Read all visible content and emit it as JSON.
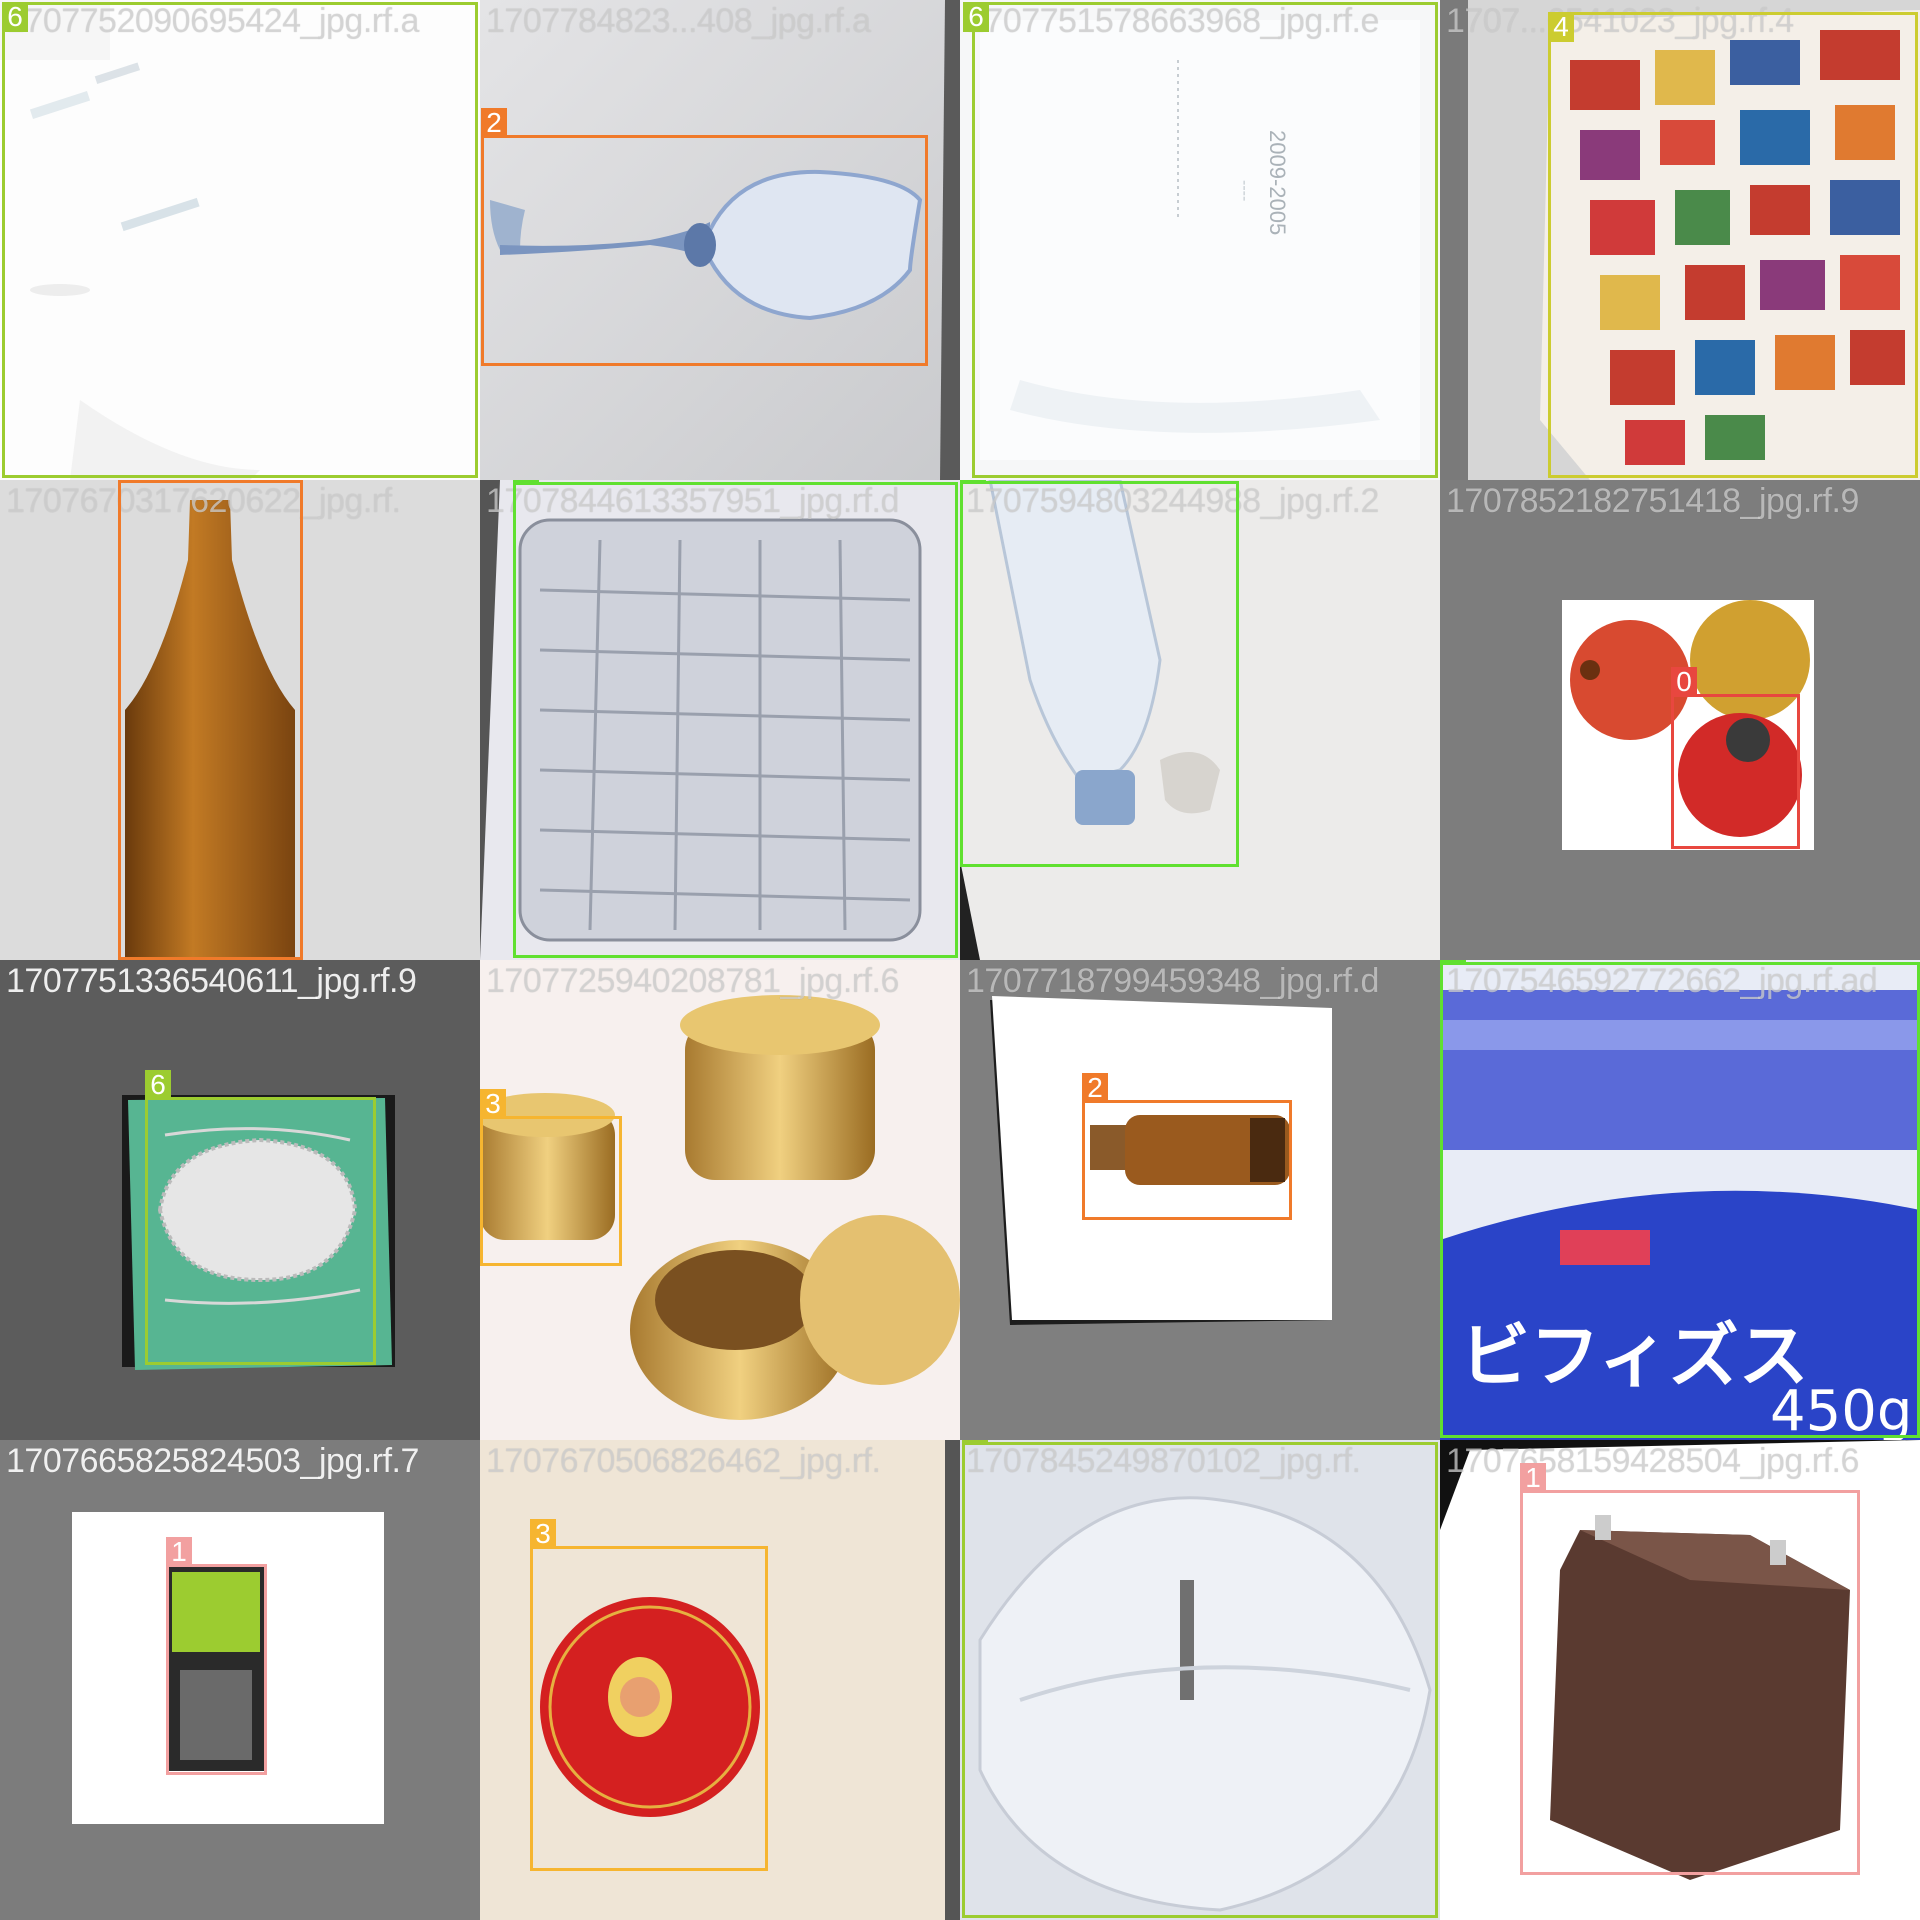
{
  "class_colors": {
    "0": "#e8473f",
    "1": "#f2a0a0",
    "2": "#f07a2a",
    "3": "#f6b530",
    "4": "#cccc30",
    "5": "#60e030",
    "6": "#9ccc30"
  },
  "tiles": [
    {
      "filename": "1707752090695424_jpg.rf.a",
      "boxes": [
        {
          "cls": "6"
        }
      ]
    },
    {
      "filename": "1707784823...408_jpg.rf.a",
      "boxes": [
        {
          "cls": "2"
        }
      ]
    },
    {
      "filename": "1707751578663968_jpg.rf.e",
      "boxes": [
        {
          "cls": "6"
        }
      ]
    },
    {
      "filename": "1707...6541023_jpg.rf.4",
      "boxes": [
        {
          "cls": "4"
        }
      ]
    },
    {
      "filename": "1707670317620622_jpg.rf.",
      "boxes": [
        {
          "cls": "2"
        }
      ]
    },
    {
      "filename": "1707844613357951_jpg.rf.d",
      "boxes": [
        {
          "cls": "5"
        }
      ]
    },
    {
      "filename": "1707594803244988_jpg.rf.2",
      "boxes": [
        {
          "cls": "5"
        }
      ]
    },
    {
      "filename": "1707852182751418_jpg.rf.9",
      "boxes": [
        {
          "cls": "0"
        }
      ]
    },
    {
      "filename": "1707751336540611_jpg.rf.9",
      "boxes": [
        {
          "cls": "6"
        }
      ]
    },
    {
      "filename": "1707725940208781_jpg.rf.6",
      "boxes": [
        {
          "cls": "3"
        }
      ]
    },
    {
      "filename": "1707718799459348_jpg.rf.d",
      "boxes": [
        {
          "cls": "2"
        }
      ]
    },
    {
      "filename": "1707546592772662_jpg.rf.ad",
      "boxes": [
        {
          "cls": "5"
        }
      ]
    },
    {
      "filename": "1707665825824503_jpg.rf.7",
      "boxes": [
        {
          "cls": "1"
        }
      ]
    },
    {
      "filename": "1707670506826462_jpg.rf.",
      "boxes": [
        {
          "cls": "3"
        }
      ]
    },
    {
      "filename": "1707845249870102_jpg.rf.",
      "boxes": [
        {
          "cls": "6"
        }
      ]
    },
    {
      "filename": "1707658159428504_jpg.rf.6",
      "boxes": [
        {
          "cls": "1"
        }
      ]
    }
  ]
}
